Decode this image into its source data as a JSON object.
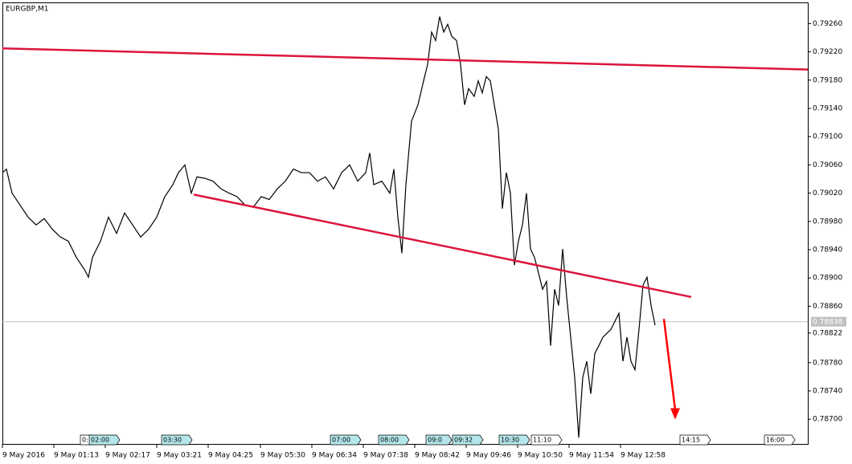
{
  "chart_data": {
    "type": "line",
    "title": "EURGBP,M1",
    "x": [
      9,
      14,
      21,
      31,
      41,
      51,
      61,
      71,
      81,
      91,
      101,
      111,
      116,
      121,
      131,
      141,
      151,
      161,
      171,
      181,
      191,
      201,
      211,
      221,
      228,
      236,
      244,
      251,
      261,
      271,
      281,
      291,
      301,
      311,
      321,
      331,
      341,
      351,
      361,
      371,
      381,
      391,
      401,
      411,
      421,
      431,
      441,
      451,
      461,
      466,
      471,
      481,
      491,
      496,
      501,
      506,
      511,
      518,
      526,
      533,
      538,
      543,
      548,
      553,
      558,
      563,
      568,
      574,
      579,
      584,
      589,
      596,
      601,
      606,
      611,
      616,
      621,
      626,
      631,
      636,
      641,
      646,
      651,
      656,
      661,
      666,
      671,
      676,
      681,
      686,
      691,
      696,
      701,
      706,
      711,
      716,
      721,
      726,
      731,
      736,
      741,
      746,
      751,
      756,
      766,
      776,
      781,
      786,
      791,
      796,
      801,
      806,
      811,
      816,
      821
    ],
    "series": [
      {
        "name": "EURGBP,M1",
        "color": "#000000",
        "values": [
          0.79049,
          0.79054,
          0.7902,
          0.79003,
          0.78986,
          0.78975,
          0.78984,
          0.78969,
          0.78958,
          0.78952,
          0.78929,
          0.78912,
          0.78901,
          0.78929,
          0.78952,
          0.78986,
          0.78963,
          0.78992,
          0.78975,
          0.78958,
          0.78969,
          0.78986,
          0.79015,
          0.79032,
          0.79049,
          0.7906,
          0.7902,
          0.79043,
          0.79041,
          0.79037,
          0.79026,
          0.7902,
          0.79015,
          0.79003,
          0.79,
          0.79015,
          0.79011,
          0.79026,
          0.79037,
          0.79054,
          0.79049,
          0.79049,
          0.79037,
          0.79043,
          0.79026,
          0.79049,
          0.7906,
          0.79037,
          0.79049,
          0.79077,
          0.79032,
          0.79037,
          0.7902,
          0.79054,
          0.78986,
          0.78935,
          0.79032,
          0.79122,
          0.79145,
          0.79179,
          0.79202,
          0.79248,
          0.79236,
          0.7927,
          0.79248,
          0.79259,
          0.79242,
          0.79236,
          0.79202,
          0.79145,
          0.79168,
          0.79157,
          0.79179,
          0.79162,
          0.79185,
          0.79179,
          0.79145,
          0.79111,
          0.78998,
          0.79049,
          0.7902,
          0.78918,
          0.78952,
          0.78975,
          0.7902,
          0.78941,
          0.78929,
          0.78907,
          0.78884,
          0.78895,
          0.78804,
          0.78884,
          0.78861,
          0.78941,
          0.78873,
          0.78816,
          0.78759,
          0.78674,
          0.78759,
          0.78782,
          0.78736,
          0.78793,
          0.78804,
          0.78816,
          0.78827,
          0.7885,
          0.78782,
          0.78816,
          0.78782,
          0.7877,
          0.78827,
          0.7889,
          0.78901,
          0.78861,
          0.78833
        ]
      }
    ],
    "xlim": [
      9,
      1011
    ],
    "xticks": [
      {
        "value": 9,
        "label": "9 May 2016"
      },
      {
        "value": 73,
        "label": "9 May 01:13"
      },
      {
        "value": 137,
        "label": "9 May 02:17"
      },
      {
        "value": 201,
        "label": "9 May 03:21"
      },
      {
        "value": 265,
        "label": "9 May 04:25"
      },
      {
        "value": 330,
        "label": "9 May 05:30"
      },
      {
        "value": 394,
        "label": "9 May 06:34"
      },
      {
        "value": 458,
        "label": "9 May 07:38"
      },
      {
        "value": 522,
        "label": "9 May 08:42"
      },
      {
        "value": 586,
        "label": "9 May 09:46"
      },
      {
        "value": 650,
        "label": "9 May 10:50"
      },
      {
        "value": 714,
        "label": "9 May 11:54"
      },
      {
        "value": 778,
        "label": "9 May 12:58"
      }
    ],
    "ylim": [
      0.78665,
      0.7929
    ],
    "yticks": [
      {
        "value": 0.7926,
        "label": "0.79260"
      },
      {
        "value": 0.7922,
        "label": "0.79220"
      },
      {
        "value": 0.7918,
        "label": "0.79180"
      },
      {
        "value": 0.7914,
        "label": "0.79140"
      },
      {
        "value": 0.791,
        "label": "0.79100"
      },
      {
        "value": 0.7906,
        "label": "0.79060"
      },
      {
        "value": 0.7902,
        "label": "0.79020"
      },
      {
        "value": 0.7898,
        "label": "0.78980"
      },
      {
        "value": 0.7894,
        "label": "0.78940"
      },
      {
        "value": 0.789,
        "label": "0.78900"
      },
      {
        "value": 0.7886,
        "label": "0.78860"
      },
      {
        "value": 0.78822,
        "label": "0.78822"
      },
      {
        "value": 0.7878,
        "label": "0.78780"
      },
      {
        "value": 0.7874,
        "label": "0.78740"
      },
      {
        "value": 0.787,
        "label": "0.78700"
      }
    ],
    "current_price": {
      "value": 0.78838,
      "label": "0.78838"
    },
    "trendlines": [
      {
        "color": "#dc143c",
        "x": [
          9,
          1011
        ],
        "y": [
          0.79225,
          0.79195
        ]
      },
      {
        "color": "#dc143c",
        "x": [
          247,
          866
        ],
        "y": [
          0.79018,
          0.78873
        ]
      }
    ],
    "arrow": {
      "color": "#ff0000",
      "x": [
        832,
        846
      ],
      "y": [
        0.78842,
        0.78702
      ]
    },
    "events": [
      {
        "value": 109,
        "label": "0:",
        "color": "#ffffff"
      },
      {
        "value": 120,
        "label": "02:00",
        "color": "#b4e6ea"
      },
      {
        "value": 210,
        "label": "03:30",
        "color": "#b4e6ea"
      },
      {
        "value": 420,
        "label": "07:00",
        "color": "#b4e6ea"
      },
      {
        "value": 480,
        "label": "08:00",
        "color": "#b4e6ea"
      },
      {
        "value": 539,
        "label": "09:0",
        "color": "#b4e6ea"
      },
      {
        "value": 572,
        "label": "09:32",
        "color": "#b4e6ea"
      },
      {
        "value": 630,
        "label": "10:30",
        "color": "#b4e6ea"
      },
      {
        "value": 670,
        "label": "11:10",
        "color": "#ffffff"
      },
      {
        "value": 855,
        "label": "14:15",
        "color": "#ffffff"
      },
      {
        "value": 960,
        "label": "16:00",
        "color": "#ffffff"
      }
    ]
  }
}
